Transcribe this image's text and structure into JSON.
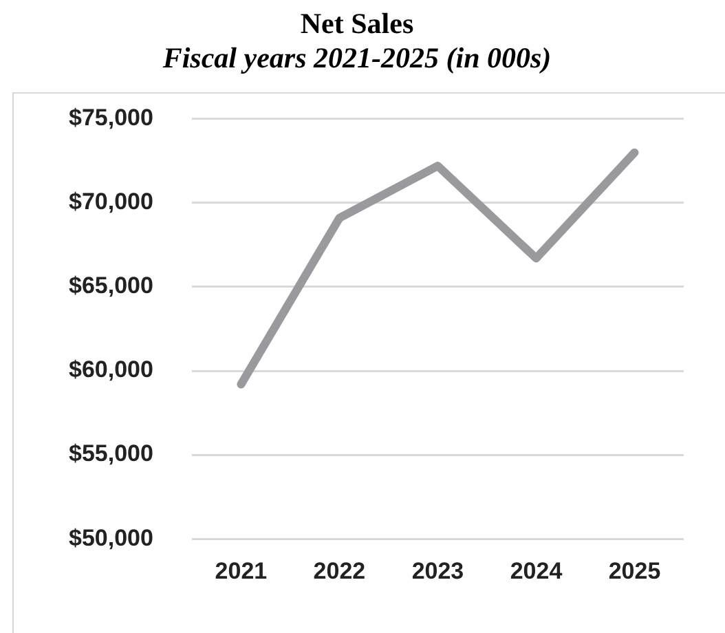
{
  "chart_data": {
    "type": "line",
    "title": "Net Sales",
    "subtitle": "Fiscal years 2021-2025 (in 000s)",
    "categories": [
      "2021",
      "2022",
      "2023",
      "2024",
      "2025"
    ],
    "series": [
      {
        "color": "#9a9a9e",
        "values": [
          59200,
          69100,
          72200,
          66700,
          73000
        ]
      }
    ],
    "ylim": [
      50000,
      75000
    ],
    "yticks": [
      {
        "value": 50000,
        "label": "$50,000"
      },
      {
        "value": 55000,
        "label": "$55,000"
      },
      {
        "value": 60000,
        "label": "$60,000"
      },
      {
        "value": 65000,
        "label": "$65,000"
      },
      {
        "value": 70000,
        "label": "$70,000"
      },
      {
        "value": 75000,
        "label": "$75,000"
      }
    ],
    "grid": "y",
    "legend": false,
    "marker": "none",
    "line_style": "solid"
  }
}
